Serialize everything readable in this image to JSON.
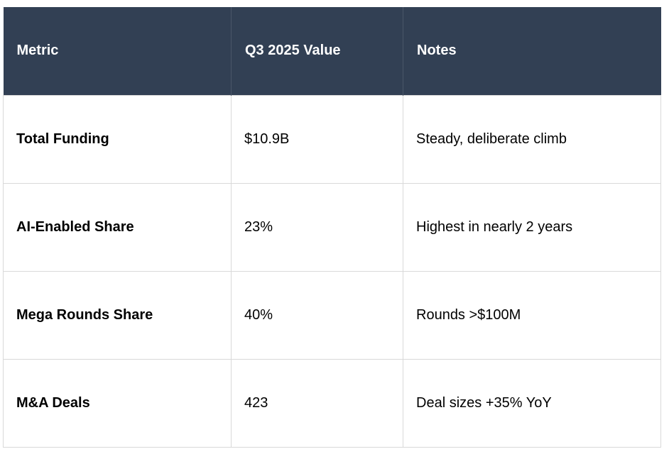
{
  "table": {
    "headers": [
      "Metric",
      "Q3 2025 Value",
      "Notes"
    ],
    "rows": [
      [
        "Total Funding",
        "$10.9B",
        "Steady, deliberate climb"
      ],
      [
        "AI-Enabled Share",
        "23%",
        "Highest in nearly 2 years"
      ],
      [
        "Mega Rounds Share",
        "40%",
        "Rounds >$100M"
      ],
      [
        "M&A Deals",
        "423",
        "Deal sizes +35% YoY"
      ]
    ]
  },
  "colors": {
    "header_bg": "#324054",
    "header_text": "#ffffff",
    "grid_line": "#d9d9d9"
  }
}
